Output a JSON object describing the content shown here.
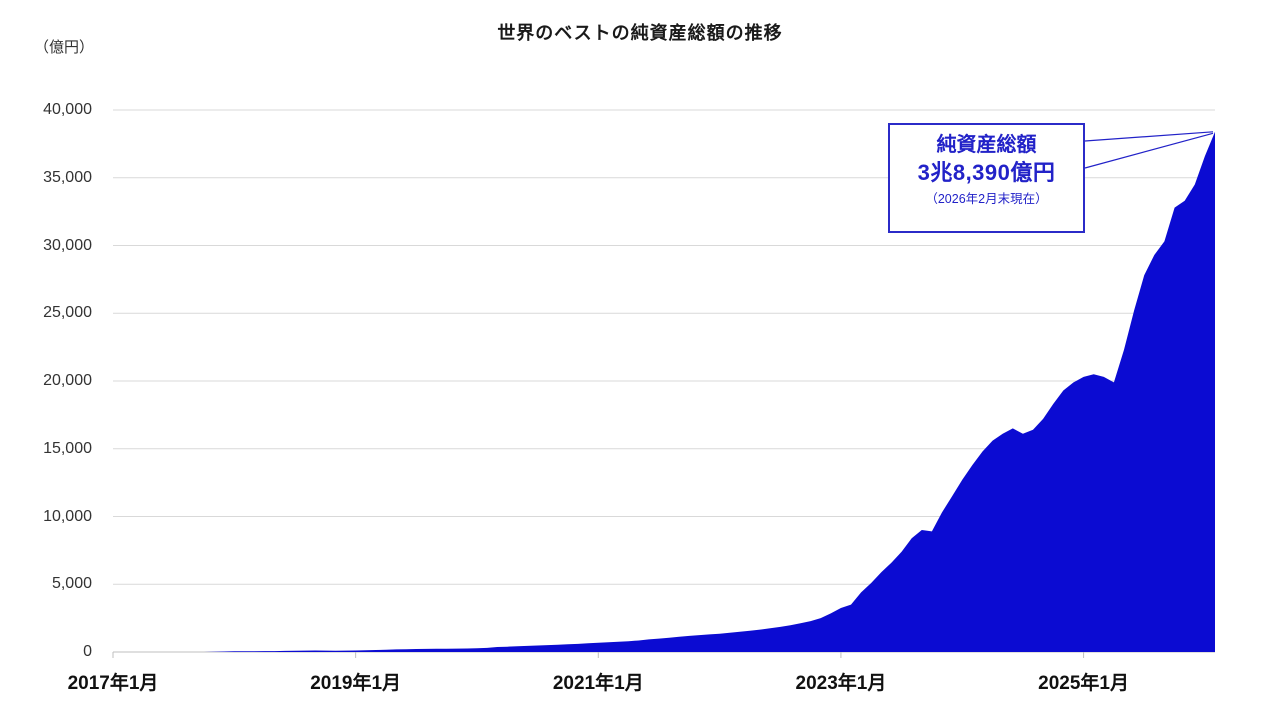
{
  "chart": {
    "title": "世界のベストの純資産総額の推移",
    "y_unit": "（億円）",
    "annotation": {
      "line1": "純資産総額",
      "line2": "3兆8,390億円",
      "line3": "（2026年2月末現在）"
    },
    "colors": {
      "area": "#0b0bd2",
      "annotation_blue": "#2222c8",
      "gridline": "#d9d9d9",
      "axis": "#bfbfbf",
      "tick_label": "#333333"
    }
  },
  "chart_data": {
    "type": "area",
    "title": "世界のベストの純資産総額の推移",
    "ylabel": "（億円）",
    "ylim": [
      0,
      40000
    ],
    "grid": "horizontal",
    "legend": "none",
    "y_ticks": [
      0,
      5000,
      10000,
      15000,
      20000,
      25000,
      30000,
      35000,
      40000
    ],
    "y_tick_labels": [
      "0",
      "5,000",
      "10,000",
      "15,000",
      "20,000",
      "25,000",
      "30,000",
      "35,000",
      "40,000"
    ],
    "x_tick_positions": [
      "2017-01",
      "2019-01",
      "2021-01",
      "2023-01",
      "2025-01"
    ],
    "x_tick_labels": [
      "2017年1月",
      "2019年1月",
      "2021年1月",
      "2023年1月",
      "2025年1月"
    ],
    "final_point": {
      "x": "2026-02",
      "value": 38390
    },
    "x": [
      "2017-01",
      "2017-02",
      "2017-03",
      "2017-04",
      "2017-05",
      "2017-06",
      "2017-07",
      "2017-08",
      "2017-09",
      "2017-10",
      "2017-11",
      "2017-12",
      "2018-01",
      "2018-02",
      "2018-03",
      "2018-04",
      "2018-05",
      "2018-06",
      "2018-07",
      "2018-08",
      "2018-09",
      "2018-10",
      "2018-11",
      "2018-12",
      "2019-01",
      "2019-02",
      "2019-03",
      "2019-04",
      "2019-05",
      "2019-06",
      "2019-07",
      "2019-08",
      "2019-09",
      "2019-10",
      "2019-11",
      "2019-12",
      "2020-01",
      "2020-02",
      "2020-03",
      "2020-04",
      "2020-05",
      "2020-06",
      "2020-07",
      "2020-08",
      "2020-09",
      "2020-10",
      "2020-11",
      "2020-12",
      "2021-01",
      "2021-02",
      "2021-03",
      "2021-04",
      "2021-05",
      "2021-06",
      "2021-07",
      "2021-08",
      "2021-09",
      "2021-10",
      "2021-11",
      "2021-12",
      "2022-01",
      "2022-02",
      "2022-03",
      "2022-04",
      "2022-05",
      "2022-06",
      "2022-07",
      "2022-08",
      "2022-09",
      "2022-10",
      "2022-11",
      "2022-12",
      "2023-01",
      "2023-02",
      "2023-03",
      "2023-04",
      "2023-05",
      "2023-06",
      "2023-07",
      "2023-08",
      "2023-09",
      "2023-10",
      "2023-11",
      "2023-12",
      "2024-01",
      "2024-02",
      "2024-03",
      "2024-04",
      "2024-05",
      "2024-06",
      "2024-07",
      "2024-08",
      "2024-09",
      "2024-10",
      "2024-11",
      "2024-12",
      "2025-01",
      "2025-02",
      "2025-03",
      "2025-04",
      "2025-05",
      "2025-06",
      "2025-07",
      "2025-08",
      "2025-09",
      "2025-10",
      "2025-11",
      "2025-12",
      "2026-01",
      "2026-02"
    ],
    "values": [
      0,
      0,
      0,
      0,
      0,
      0,
      0,
      0,
      0,
      0,
      20,
      40,
      50,
      55,
      60,
      65,
      70,
      80,
      90,
      100,
      110,
      100,
      95,
      100,
      110,
      130,
      150,
      170,
      190,
      210,
      220,
      230,
      240,
      245,
      250,
      260,
      280,
      300,
      370,
      390,
      420,
      450,
      480,
      510,
      540,
      570,
      600,
      640,
      680,
      720,
      760,
      800,
      850,
      930,
      990,
      1050,
      1120,
      1190,
      1250,
      1300,
      1350,
      1420,
      1500,
      1570,
      1650,
      1750,
      1850,
      1980,
      2120,
      2280,
      2500,
      2850,
      3250,
      3500,
      4400,
      5100,
      5900,
      6600,
      7400,
      8400,
      9000,
      8900,
      10300,
      11500,
      12700,
      13800,
      14800,
      15600,
      16100,
      16500,
      16100,
      16400,
      17200,
      18300,
      19300,
      19900,
      20300,
      20500,
      20300,
      19900,
      22300,
      25200,
      27800,
      29300,
      30300,
      32800,
      33300,
      34500,
      36600,
      38390
    ]
  }
}
